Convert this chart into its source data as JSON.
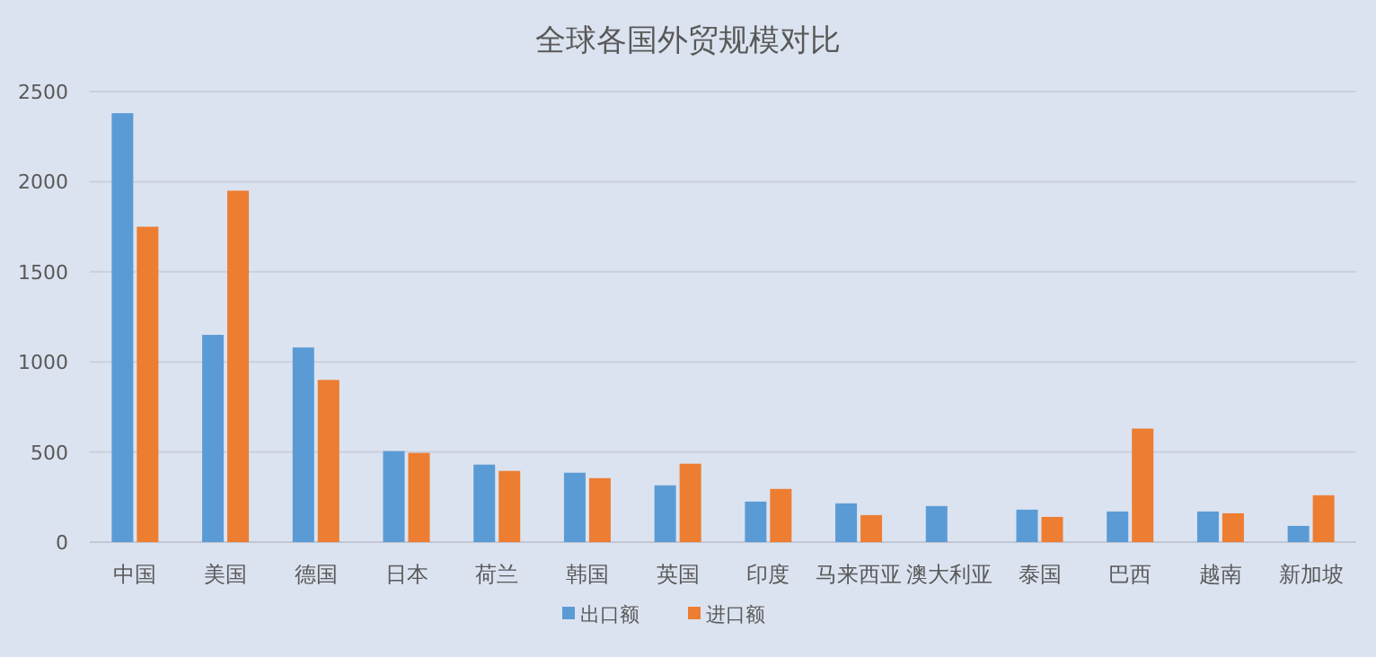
{
  "chart_data": {
    "type": "bar",
    "title": "全球各国外贸规模对比",
    "categories": [
      "中国",
      "美国",
      "德国",
      "日本",
      "荷兰",
      "韩国",
      "英国",
      "印度",
      "马来西亚",
      "澳大利亚",
      "泰国",
      "巴西",
      "越南",
      "新加坡"
    ],
    "series": [
      {
        "name": "出口额",
        "color": "#5b9bd5",
        "values": [
          2380,
          1150,
          1080,
          505,
          430,
          385,
          315,
          225,
          215,
          200,
          180,
          170,
          170,
          90
        ]
      },
      {
        "name": "进口额",
        "color": "#ed7d31",
        "values": [
          1750,
          1950,
          900,
          495,
          395,
          355,
          435,
          295,
          150,
          null,
          140,
          630,
          160,
          260
        ]
      }
    ],
    "ylim": [
      0,
      2500
    ],
    "yticks": [
      0,
      500,
      1000,
      1500,
      2000,
      2500
    ],
    "grid": "y",
    "legend": "bottom"
  }
}
